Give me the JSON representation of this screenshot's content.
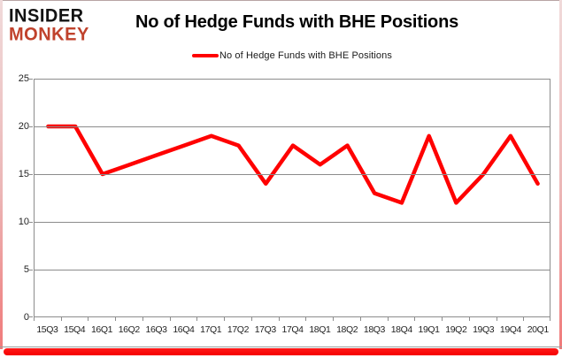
{
  "logo": {
    "line1": "INSIDER",
    "line2": "MONKEY"
  },
  "header": {
    "title": "No of Hedge Funds with BHE Positions"
  },
  "legend": {
    "label": "No of Hedge Funds with BHE Positions"
  },
  "colors": {
    "line": "#ff0000",
    "logo_accent": "#c0422c",
    "gridline": "#8c8c8c",
    "axis_text": "#1f1f1f",
    "frame_red": "#f50000"
  },
  "chart_data": {
    "type": "line",
    "title": "No of Hedge Funds with BHE Positions",
    "categories": [
      "15Q3",
      "15Q4",
      "16Q1",
      "16Q2",
      "16Q3",
      "16Q4",
      "17Q1",
      "17Q2",
      "17Q3",
      "17Q4",
      "18Q1",
      "18Q2",
      "18Q3",
      "18Q4",
      "19Q1",
      "19Q2",
      "19Q3",
      "19Q4",
      "20Q1"
    ],
    "series": [
      {
        "name": "No of Hedge Funds with BHE Positions",
        "values": [
          20,
          20,
          15,
          16,
          17,
          18,
          19,
          18,
          14,
          18,
          16,
          18,
          13,
          12,
          19,
          12,
          15,
          19,
          14
        ]
      }
    ],
    "xlabel": "",
    "ylabel": "",
    "ylim": [
      0,
      25
    ],
    "yticks": [
      0,
      5,
      10,
      15,
      20,
      25
    ],
    "grid": true,
    "legend_position": "top-center",
    "line_color": "#ff0000"
  }
}
